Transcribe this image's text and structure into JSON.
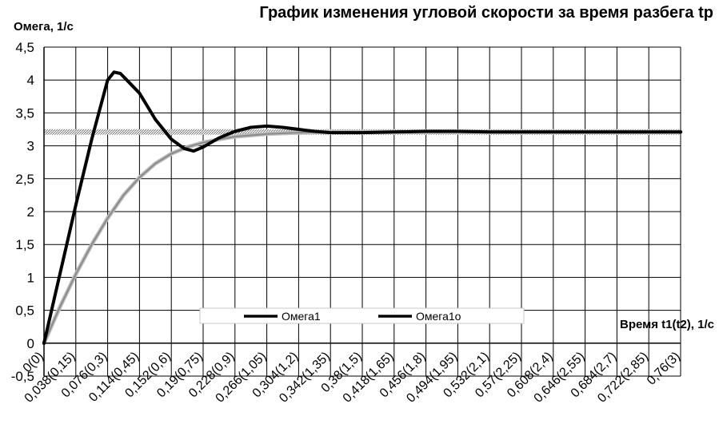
{
  "chart_data": {
    "type": "line",
    "title": "График изменения угловой скорости за время разбега tр",
    "ylabel": "Омега, 1/с",
    "xlabel": "Время t1(t2), 1/с",
    "ylim": [
      -0.5,
      4.5
    ],
    "ytick_step": 0.5,
    "yticks": [
      "-0,5",
      "0",
      "0,5",
      "1",
      "1,5",
      "2",
      "2,5",
      "3",
      "3,5",
      "4",
      "4,5"
    ],
    "categories": [
      "0(0)",
      "0,038(0,15)",
      "0,076(0,3)",
      "0,114(0,45)",
      "0,152(0,6)",
      "0,19(0,75)",
      "0,228(0,9)",
      "0,266(1,05)",
      "0,304(1,2)",
      "0,342(1,35)",
      "0,38(1,5)",
      "0,418(1,65)",
      "0,456(1,8)",
      "0,494(1,95)",
      "0,532(2,1)",
      "0,57(2,25)",
      "0,608(2,4)",
      "0,646(2,55)",
      "0,684(2,7)",
      "0,722(2,85)",
      "0,76(3)"
    ],
    "grid": true,
    "legend_position": "bottom",
    "series": [
      {
        "name": "Омега1",
        "color": "#000000",
        "x": [
          0,
          0.5,
          1,
          1.5,
          2,
          2.2,
          2.4,
          2.6,
          3,
          3.5,
          4,
          4.4,
          4.7,
          5,
          5.5,
          6,
          6.5,
          7,
          7.5,
          8,
          8.5,
          9,
          10,
          11,
          12,
          13,
          14,
          15,
          16,
          17,
          18,
          19,
          20
        ],
        "y": [
          0,
          1.05,
          2.1,
          3.1,
          4.0,
          4.12,
          4.1,
          4.0,
          3.8,
          3.4,
          3.1,
          2.96,
          2.92,
          2.98,
          3.12,
          3.22,
          3.28,
          3.3,
          3.28,
          3.25,
          3.22,
          3.2,
          3.2,
          3.21,
          3.22,
          3.22,
          3.21,
          3.21,
          3.21,
          3.21,
          3.21,
          3.21,
          3.21
        ]
      },
      {
        "name": "Омега1о",
        "color": "#8c8c8c",
        "x": [
          0,
          0.5,
          1,
          1.5,
          2,
          2.5,
          3,
          3.5,
          4,
          4.5,
          5,
          5.5,
          6,
          7,
          8,
          9,
          10,
          12,
          14,
          16,
          18,
          20
        ],
        "y": [
          0,
          0.55,
          1.05,
          1.5,
          1.9,
          2.25,
          2.52,
          2.73,
          2.88,
          2.98,
          3.05,
          3.1,
          3.14,
          3.18,
          3.2,
          3.21,
          3.21,
          3.21,
          3.21,
          3.21,
          3.21,
          3.21
        ]
      }
    ],
    "reference_line": {
      "y": 3.21,
      "color": "#9a9a9a"
    }
  }
}
